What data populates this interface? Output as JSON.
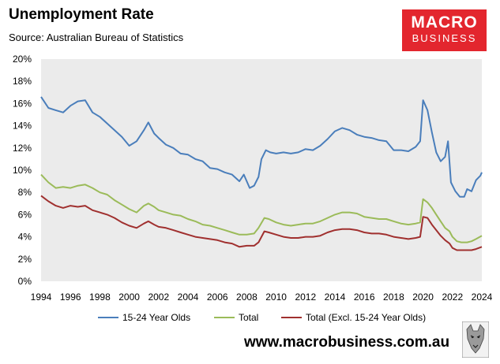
{
  "header": {
    "title": "Unemployment Rate",
    "subtitle": "Source: Australian Bureau of Statistics"
  },
  "logo": {
    "line1": "MACRO",
    "line2": "BUSINESS",
    "color": "#e3262e"
  },
  "footer": {
    "url": "www.macrobusiness.com.au"
  },
  "chart_data": {
    "type": "line",
    "title": "Unemployment Rate",
    "xlim": [
      1994,
      2024
    ],
    "ylim": [
      0,
      20
    ],
    "x_ticks": [
      1994,
      1996,
      1998,
      2000,
      2002,
      2004,
      2006,
      2008,
      2010,
      2012,
      2014,
      2016,
      2018,
      2020,
      2022,
      2024
    ],
    "y_ticks": [
      "0%",
      "2%",
      "4%",
      "6%",
      "8%",
      "10%",
      "12%",
      "14%",
      "16%",
      "18%",
      "20%"
    ],
    "plot_background": "#ebebeb",
    "grid": false,
    "legend_position": "bottom",
    "series": [
      {
        "name": "15-24 Year Olds",
        "color": "#4a7ebb",
        "points": [
          [
            1994.0,
            16.6
          ],
          [
            1994.5,
            15.6
          ],
          [
            1995.0,
            15.4
          ],
          [
            1995.5,
            15.2
          ],
          [
            1996.0,
            15.8
          ],
          [
            1996.5,
            16.2
          ],
          [
            1997.0,
            16.3
          ],
          [
            1997.5,
            15.2
          ],
          [
            1998.0,
            14.8
          ],
          [
            1998.5,
            14.2
          ],
          [
            1999.0,
            13.6
          ],
          [
            1999.5,
            13.0
          ],
          [
            2000.0,
            12.2
          ],
          [
            2000.5,
            12.6
          ],
          [
            2001.0,
            13.6
          ],
          [
            2001.3,
            14.3
          ],
          [
            2001.7,
            13.3
          ],
          [
            2002.0,
            12.9
          ],
          [
            2002.5,
            12.3
          ],
          [
            2003.0,
            12.0
          ],
          [
            2003.5,
            11.5
          ],
          [
            2004.0,
            11.4
          ],
          [
            2004.5,
            11.0
          ],
          [
            2005.0,
            10.8
          ],
          [
            2005.5,
            10.2
          ],
          [
            2006.0,
            10.1
          ],
          [
            2006.5,
            9.8
          ],
          [
            2007.0,
            9.6
          ],
          [
            2007.5,
            9.0
          ],
          [
            2007.8,
            9.6
          ],
          [
            2008.2,
            8.4
          ],
          [
            2008.5,
            8.6
          ],
          [
            2008.8,
            9.4
          ],
          [
            2009.0,
            11.0
          ],
          [
            2009.3,
            11.8
          ],
          [
            2009.6,
            11.6
          ],
          [
            2010.0,
            11.5
          ],
          [
            2010.5,
            11.6
          ],
          [
            2011.0,
            11.5
          ],
          [
            2011.5,
            11.6
          ],
          [
            2012.0,
            11.9
          ],
          [
            2012.5,
            11.8
          ],
          [
            2013.0,
            12.2
          ],
          [
            2013.5,
            12.8
          ],
          [
            2014.0,
            13.5
          ],
          [
            2014.5,
            13.8
          ],
          [
            2015.0,
            13.6
          ],
          [
            2015.5,
            13.2
          ],
          [
            2016.0,
            13.0
          ],
          [
            2016.5,
            12.9
          ],
          [
            2017.0,
            12.7
          ],
          [
            2017.5,
            12.6
          ],
          [
            2018.0,
            11.8
          ],
          [
            2018.5,
            11.8
          ],
          [
            2019.0,
            11.7
          ],
          [
            2019.5,
            12.1
          ],
          [
            2019.8,
            12.6
          ],
          [
            2020.0,
            16.3
          ],
          [
            2020.3,
            15.4
          ],
          [
            2020.6,
            13.4
          ],
          [
            2020.9,
            11.6
          ],
          [
            2021.2,
            10.8
          ],
          [
            2021.5,
            11.2
          ],
          [
            2021.7,
            12.6
          ],
          [
            2021.9,
            8.9
          ],
          [
            2022.2,
            8.1
          ],
          [
            2022.5,
            7.6
          ],
          [
            2022.8,
            7.6
          ],
          [
            2023.0,
            8.3
          ],
          [
            2023.3,
            8.1
          ],
          [
            2023.6,
            9.1
          ],
          [
            2023.9,
            9.5
          ],
          [
            2024.0,
            9.8
          ]
        ]
      },
      {
        "name": "Total",
        "color": "#9bbb59",
        "points": [
          [
            1994.0,
            9.6
          ],
          [
            1994.5,
            8.9
          ],
          [
            1995.0,
            8.4
          ],
          [
            1995.5,
            8.5
          ],
          [
            1996.0,
            8.4
          ],
          [
            1996.5,
            8.6
          ],
          [
            1997.0,
            8.7
          ],
          [
            1997.5,
            8.4
          ],
          [
            1998.0,
            8.0
          ],
          [
            1998.5,
            7.8
          ],
          [
            1999.0,
            7.3
          ],
          [
            1999.5,
            6.9
          ],
          [
            2000.0,
            6.5
          ],
          [
            2000.5,
            6.2
          ],
          [
            2001.0,
            6.8
          ],
          [
            2001.3,
            7.0
          ],
          [
            2001.7,
            6.7
          ],
          [
            2002.0,
            6.4
          ],
          [
            2002.5,
            6.2
          ],
          [
            2003.0,
            6.0
          ],
          [
            2003.5,
            5.9
          ],
          [
            2004.0,
            5.6
          ],
          [
            2004.5,
            5.4
          ],
          [
            2005.0,
            5.1
          ],
          [
            2005.5,
            5.0
          ],
          [
            2006.0,
            4.8
          ],
          [
            2006.5,
            4.6
          ],
          [
            2007.0,
            4.4
          ],
          [
            2007.5,
            4.2
          ],
          [
            2008.0,
            4.2
          ],
          [
            2008.5,
            4.3
          ],
          [
            2008.8,
            4.8
          ],
          [
            2009.2,
            5.7
          ],
          [
            2009.5,
            5.6
          ],
          [
            2010.0,
            5.3
          ],
          [
            2010.5,
            5.1
          ],
          [
            2011.0,
            5.0
          ],
          [
            2011.5,
            5.1
          ],
          [
            2012.0,
            5.2
          ],
          [
            2012.5,
            5.2
          ],
          [
            2013.0,
            5.4
          ],
          [
            2013.5,
            5.7
          ],
          [
            2014.0,
            6.0
          ],
          [
            2014.5,
            6.2
          ],
          [
            2015.0,
            6.2
          ],
          [
            2015.5,
            6.1
          ],
          [
            2016.0,
            5.8
          ],
          [
            2016.5,
            5.7
          ],
          [
            2017.0,
            5.6
          ],
          [
            2017.5,
            5.6
          ],
          [
            2018.0,
            5.4
          ],
          [
            2018.5,
            5.2
          ],
          [
            2019.0,
            5.1
          ],
          [
            2019.5,
            5.2
          ],
          [
            2019.8,
            5.3
          ],
          [
            2020.0,
            7.4
          ],
          [
            2020.3,
            7.1
          ],
          [
            2020.6,
            6.6
          ],
          [
            2020.9,
            6.0
          ],
          [
            2021.2,
            5.4
          ],
          [
            2021.5,
            4.8
          ],
          [
            2021.8,
            4.5
          ],
          [
            2022.0,
            4.0
          ],
          [
            2022.3,
            3.6
          ],
          [
            2022.6,
            3.5
          ],
          [
            2023.0,
            3.5
          ],
          [
            2023.3,
            3.6
          ],
          [
            2023.6,
            3.8
          ],
          [
            2024.0,
            4.1
          ]
        ]
      },
      {
        "name": "Total (Excl. 15-24 Year Olds)",
        "color": "#a0302f",
        "points": [
          [
            1994.0,
            7.7
          ],
          [
            1994.5,
            7.2
          ],
          [
            1995.0,
            6.8
          ],
          [
            1995.5,
            6.6
          ],
          [
            1996.0,
            6.8
          ],
          [
            1996.5,
            6.7
          ],
          [
            1997.0,
            6.8
          ],
          [
            1997.5,
            6.4
          ],
          [
            1998.0,
            6.2
          ],
          [
            1998.5,
            6.0
          ],
          [
            1999.0,
            5.7
          ],
          [
            1999.5,
            5.3
          ],
          [
            2000.0,
            5.0
          ],
          [
            2000.5,
            4.8
          ],
          [
            2001.0,
            5.2
          ],
          [
            2001.3,
            5.4
          ],
          [
            2001.7,
            5.1
          ],
          [
            2002.0,
            4.9
          ],
          [
            2002.5,
            4.8
          ],
          [
            2003.0,
            4.6
          ],
          [
            2003.5,
            4.4
          ],
          [
            2004.0,
            4.2
          ],
          [
            2004.5,
            4.0
          ],
          [
            2005.0,
            3.9
          ],
          [
            2005.5,
            3.8
          ],
          [
            2006.0,
            3.7
          ],
          [
            2006.5,
            3.5
          ],
          [
            2007.0,
            3.4
          ],
          [
            2007.5,
            3.1
          ],
          [
            2008.0,
            3.2
          ],
          [
            2008.5,
            3.2
          ],
          [
            2008.8,
            3.5
          ],
          [
            2009.2,
            4.5
          ],
          [
            2009.5,
            4.4
          ],
          [
            2010.0,
            4.2
          ],
          [
            2010.5,
            4.0
          ],
          [
            2011.0,
            3.9
          ],
          [
            2011.5,
            3.9
          ],
          [
            2012.0,
            4.0
          ],
          [
            2012.5,
            4.0
          ],
          [
            2013.0,
            4.1
          ],
          [
            2013.5,
            4.4
          ],
          [
            2014.0,
            4.6
          ],
          [
            2014.5,
            4.7
          ],
          [
            2015.0,
            4.7
          ],
          [
            2015.5,
            4.6
          ],
          [
            2016.0,
            4.4
          ],
          [
            2016.5,
            4.3
          ],
          [
            2017.0,
            4.3
          ],
          [
            2017.5,
            4.2
          ],
          [
            2018.0,
            4.0
          ],
          [
            2018.5,
            3.9
          ],
          [
            2019.0,
            3.8
          ],
          [
            2019.5,
            3.9
          ],
          [
            2019.8,
            4.0
          ],
          [
            2020.0,
            5.8
          ],
          [
            2020.3,
            5.7
          ],
          [
            2020.6,
            5.1
          ],
          [
            2020.9,
            4.6
          ],
          [
            2021.2,
            4.1
          ],
          [
            2021.5,
            3.7
          ],
          [
            2021.8,
            3.4
          ],
          [
            2022.0,
            3.0
          ],
          [
            2022.3,
            2.8
          ],
          [
            2022.6,
            2.8
          ],
          [
            2023.0,
            2.8
          ],
          [
            2023.3,
            2.8
          ],
          [
            2023.6,
            2.9
          ],
          [
            2024.0,
            3.1
          ]
        ]
      }
    ]
  }
}
